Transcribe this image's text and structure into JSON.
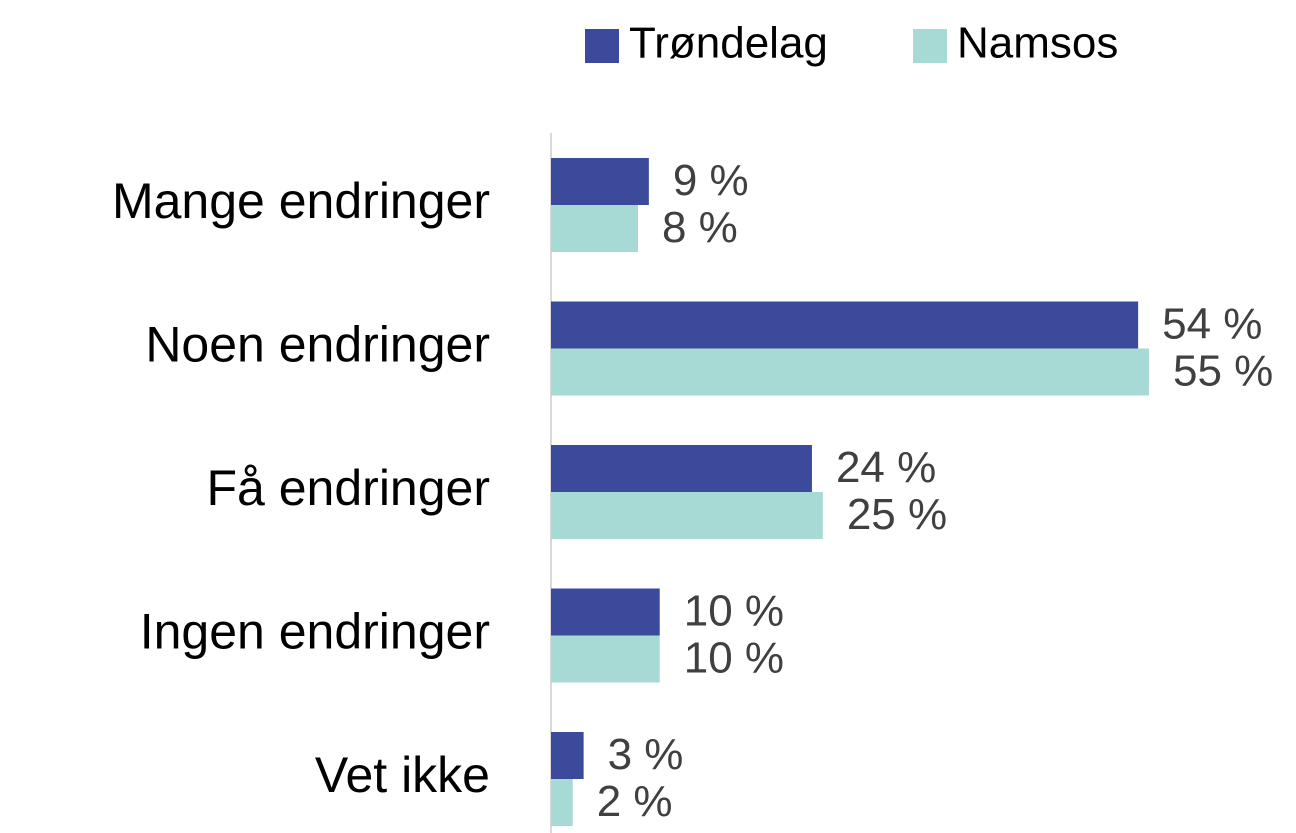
{
  "chart_data": {
    "type": "bar",
    "orientation": "horizontal",
    "categories": [
      "Mange endringer",
      "Noen endringer",
      "Få endringer",
      "Ingen endringer",
      "Vet ikke"
    ],
    "series": [
      {
        "name": "Trøndelag",
        "color": "#3c4a9b",
        "values": [
          9,
          54,
          24,
          10,
          3
        ],
        "value_labels": [
          "9 %",
          "54 %",
          "24 %",
          "10 %",
          "3 %"
        ]
      },
      {
        "name": "Namsos",
        "color": "#a8dad5",
        "values": [
          8,
          55,
          25,
          10,
          2
        ],
        "value_labels": [
          "8 %",
          "55 %",
          "25 %",
          "10 %",
          "2 %"
        ]
      }
    ],
    "legend": "top"
  }
}
